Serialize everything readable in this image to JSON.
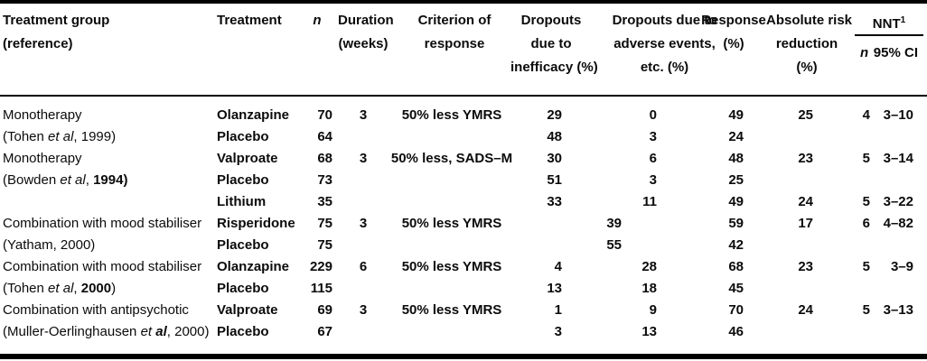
{
  "table": {
    "headers": {
      "group": {
        "line1": "Treatment group",
        "line2": "(reference)"
      },
      "treatment": "Treatment",
      "n": "n",
      "duration": {
        "line1": "Duration",
        "line2": "(weeks)"
      },
      "criterion": {
        "line1": "Criterion of",
        "line2": "response"
      },
      "dropouts_inefficacy": {
        "line1": "Dropouts",
        "line2": "due to",
        "line3": "inefficacy (%)"
      },
      "dropouts_adverse": {
        "line1": "Dropouts due to",
        "line2": "adverse events,",
        "line3": "etc. (%)"
      },
      "response": {
        "line1": "Response",
        "line2": "(%)"
      },
      "arr": {
        "line1": "Absolute risk",
        "line2": "reduction",
        "line3": "(%)"
      },
      "nnt": {
        "label": "NNT",
        "sup": "1",
        "sub_n": "n",
        "sub_ci": "95% CI"
      }
    },
    "rows": [
      {
        "group": [
          {
            "text": "Monotherapy"
          }
        ],
        "treatment": "Olanzapine",
        "n": "70",
        "duration": "3",
        "criterion": "50% less YMRS",
        "dropouts_inefficacy": "29",
        "dropouts_combined": "",
        "dropouts_adverse": "0",
        "response": "49",
        "arr": "25",
        "nnt_n": "4",
        "nnt_ci": "3–10"
      },
      {
        "group": [
          {
            "text": "(Tohen "
          },
          {
            "text": "et al",
            "italic": true
          },
          {
            "text": ", 1999)"
          }
        ],
        "treatment": "Placebo",
        "n": "64",
        "duration": "",
        "criterion": "",
        "dropouts_inefficacy": "48",
        "dropouts_combined": "",
        "dropouts_adverse": "3",
        "response": "24",
        "arr": "",
        "nnt_n": "",
        "nnt_ci": ""
      },
      {
        "group": [
          {
            "text": "Monotherapy"
          }
        ],
        "treatment": "Valproate",
        "n": "68",
        "duration": "3",
        "criterion": "50% less, SADS–M",
        "dropouts_inefficacy": "30",
        "dropouts_combined": "",
        "dropouts_adverse": "6",
        "response": "48",
        "arr": "23",
        "nnt_n": "5",
        "nnt_ci": "3–14"
      },
      {
        "group": [
          {
            "text": "(Bowden "
          },
          {
            "text": "et al",
            "italic": true
          },
          {
            "text": ", "
          },
          {
            "text": "1994)",
            "bold": true
          }
        ],
        "treatment": "Placebo",
        "n": "73",
        "duration": "",
        "criterion": "",
        "dropouts_inefficacy": "51",
        "dropouts_combined": "",
        "dropouts_adverse": "3",
        "response": "25",
        "arr": "",
        "nnt_n": "",
        "nnt_ci": ""
      },
      {
        "group": [],
        "treatment": "Lithium",
        "n": "35",
        "duration": "",
        "criterion": "",
        "dropouts_inefficacy": "33",
        "dropouts_combined": "",
        "dropouts_adverse": "11",
        "response": "49",
        "arr": "24",
        "nnt_n": "5",
        "nnt_ci": "3–22"
      },
      {
        "group": [
          {
            "text": "Combination with mood stabiliser"
          }
        ],
        "treatment": "Risperidone",
        "n": "75",
        "duration": "3",
        "criterion": "50% less YMRS",
        "dropouts_inefficacy": "",
        "dropouts_combined": "39",
        "dropouts_adverse": "",
        "response": "59",
        "arr": "17",
        "nnt_n": "6",
        "nnt_ci": "4–82"
      },
      {
        "group": [
          {
            "text": "(Yatham, 2000)"
          }
        ],
        "treatment": "Placebo",
        "n": "75",
        "duration": "",
        "criterion": "",
        "dropouts_inefficacy": "",
        "dropouts_combined": "55",
        "dropouts_adverse": "",
        "response": "42",
        "arr": "",
        "nnt_n": "",
        "nnt_ci": ""
      },
      {
        "group": [
          {
            "text": "Combination with mood stabiliser"
          }
        ],
        "treatment": "Olanzapine",
        "n": "229",
        "duration": "6",
        "criterion": "50% less YMRS",
        "dropouts_inefficacy": "4",
        "dropouts_combined": "",
        "dropouts_adverse": "28",
        "response": "68",
        "arr": "23",
        "nnt_n": "5",
        "nnt_ci": "3–9"
      },
      {
        "group": [
          {
            "text": "(Tohen "
          },
          {
            "text": "et al",
            "italic": true
          },
          {
            "text": ", "
          },
          {
            "text": "2000",
            "bold": true
          },
          {
            "text": ")"
          }
        ],
        "treatment": "Placebo",
        "n": "115",
        "duration": "",
        "criterion": "",
        "dropouts_inefficacy": "13",
        "dropouts_combined": "",
        "dropouts_adverse": "18",
        "response": "45",
        "arr": "",
        "nnt_n": "",
        "nnt_ci": ""
      },
      {
        "group": [
          {
            "text": "Combination with antipsychotic"
          }
        ],
        "treatment": "Valproate",
        "n": "69",
        "duration": "3",
        "criterion": "50% less YMRS",
        "dropouts_inefficacy": "1",
        "dropouts_combined": "",
        "dropouts_adverse": "9",
        "response": "70",
        "arr": "24",
        "nnt_n": "5",
        "nnt_ci": "3–13"
      },
      {
        "group": [
          {
            "text": "(Muller-Oerlinghausen "
          },
          {
            "text": "et ",
            "italic": true
          },
          {
            "text": "al",
            "italic": true,
            "bold": true
          },
          {
            "text": ", 2000)"
          }
        ],
        "treatment": "Placebo",
        "n": "67",
        "duration": "",
        "criterion": "",
        "dropouts_inefficacy": "3",
        "dropouts_combined": "",
        "dropouts_adverse": "13",
        "response": "46",
        "arr": "",
        "nnt_n": "",
        "nnt_ci": ""
      }
    ]
  }
}
